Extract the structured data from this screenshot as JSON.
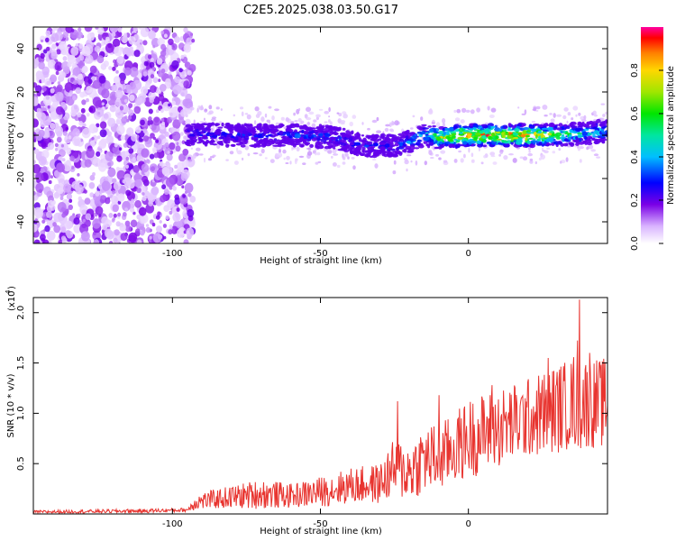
{
  "title": "C2E5.2025.038.03.50.G17",
  "chart_data": [
    {
      "type": "heatmap",
      "xlabel": "Height of straight line (km)",
      "ylabel": "Frequency (Hz)",
      "xlim": [
        -147,
        47
      ],
      "ylim": [
        -50,
        50
      ],
      "xticks": [
        -100,
        -50,
        0
      ],
      "yticks": [
        -40,
        -20,
        0,
        20,
        40
      ],
      "colorbar": {
        "label": "Normalized spectral amplitude",
        "ticks": [
          "0.0",
          "0.2",
          "0.4",
          "0.6",
          "0.8"
        ],
        "range": [
          0,
          1
        ]
      },
      "features": [
        {
          "region": "x from -147 to -95 km",
          "description": "broadband noise across all frequencies, amplitude about 0.1-0.2"
        },
        {
          "region": "x from -95 to 47 km",
          "description": "narrow band near 0 Hz (about -5 to 5 Hz), amplitude 0.2-0.5 for x < -10, rising to about 0.9 near x = -10 to 30"
        }
      ],
      "band_center_profile": {
        "x": [
          -93,
          -80,
          -60,
          -45,
          -40,
          -35,
          -30,
          -25,
          -20,
          -15,
          -10,
          0,
          10,
          20,
          30,
          40,
          47
        ],
        "y": [
          1,
          0,
          0,
          -1,
          -3,
          -5,
          -5,
          -5,
          -3,
          0,
          -1,
          0,
          0,
          0,
          0,
          1,
          2
        ]
      },
      "band_amplitude_profile": {
        "x": [
          -95,
          -85,
          -70,
          -50,
          -40,
          -25,
          -15,
          -10,
          0,
          20,
          35,
          47
        ],
        "amplitude": [
          0.3,
          0.3,
          0.3,
          0.35,
          0.3,
          0.3,
          0.45,
          0.75,
          0.9,
          0.9,
          0.55,
          0.45
        ]
      }
    },
    {
      "type": "line",
      "xlabel": "Height of straight line (km)",
      "ylabel": "SNR (10 * v/v)",
      "yscale_label": "(x10",
      "yscale_exponent": "4",
      "xlim": [
        -147,
        47
      ],
      "ylim": [
        0,
        2.15
      ],
      "xticks": [
        -100,
        -50,
        0
      ],
      "yticks": [
        0.5,
        1.0,
        1.5,
        2.0
      ],
      "ytick_labels": [
        "0.5",
        "1.0",
        "1.5",
        "2.0"
      ],
      "series_color": "#e8342f",
      "envelope": {
        "x": [
          -147,
          -110,
          -95,
          -92,
          -85,
          -70,
          -60,
          -50,
          -40,
          -30,
          -25,
          -20,
          -15,
          -10,
          -5,
          0,
          10,
          20,
          30,
          35,
          37,
          40,
          47
        ],
        "mean": [
          0.02,
          0.03,
          0.04,
          0.12,
          0.15,
          0.2,
          0.18,
          0.22,
          0.28,
          0.3,
          0.45,
          0.42,
          0.55,
          0.55,
          0.65,
          0.75,
          0.85,
          0.95,
          1.05,
          1.1,
          1.2,
          1.1,
          1.1
        ],
        "amp": [
          0.015,
          0.02,
          0.02,
          0.08,
          0.1,
          0.15,
          0.12,
          0.15,
          0.18,
          0.2,
          0.3,
          0.3,
          0.35,
          0.35,
          0.35,
          0.4,
          0.4,
          0.4,
          0.45,
          0.45,
          0.6,
          0.45,
          0.45
        ]
      },
      "peaks": [
        {
          "x": 37.5,
          "y": 2.13
        },
        {
          "x": -24,
          "y": 1.12
        },
        {
          "x": -10,
          "y": 1.18
        },
        {
          "x": 8,
          "y": 1.28
        },
        {
          "x": 27,
          "y": 1.55
        },
        {
          "x": 41,
          "y": 1.6
        }
      ]
    }
  ]
}
